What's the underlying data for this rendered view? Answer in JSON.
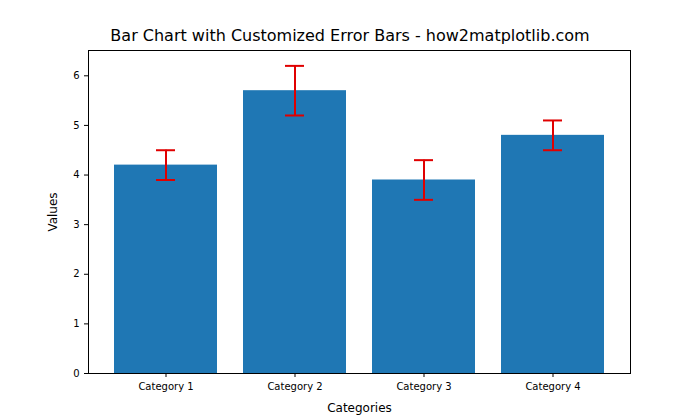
{
  "chart_data": {
    "type": "bar",
    "title": "Bar Chart with Customized Error Bars - how2matplotlib.com",
    "xlabel": "Categories",
    "ylabel": "Values",
    "categories": [
      "Category 1",
      "Category 2",
      "Category 3",
      "Category 4"
    ],
    "values": [
      4.2,
      5.7,
      3.9,
      4.8
    ],
    "errors": [
      0.3,
      0.5,
      0.4,
      0.3
    ],
    "color": "#1f77b4",
    "ylim": [
      0,
      6.51
    ],
    "yticks": [
      0,
      1,
      2,
      3,
      4,
      5,
      6
    ]
  }
}
